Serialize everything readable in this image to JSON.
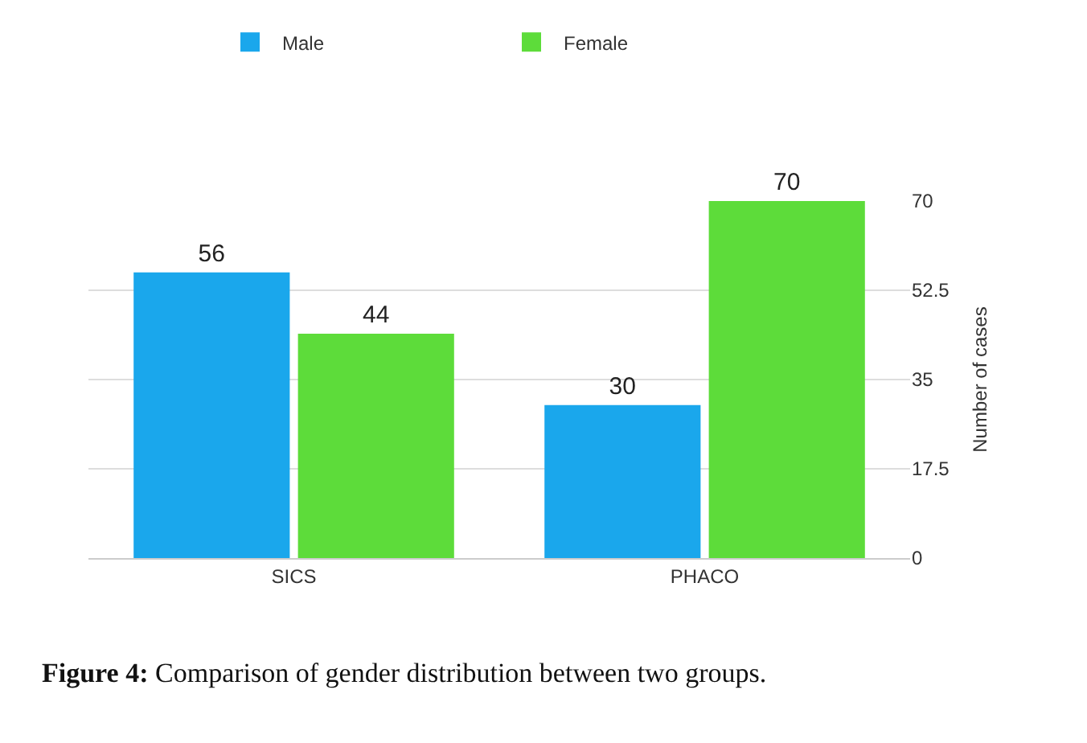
{
  "chart_data": {
    "type": "bar",
    "categories": [
      "SICS",
      "PHACO"
    ],
    "series": [
      {
        "name": "Male",
        "color": "#1aa7ec",
        "values": [
          56,
          30
        ]
      },
      {
        "name": "Female",
        "color": "#5ddc3a",
        "values": [
          44,
          70
        ]
      }
    ],
    "ylabel": "Number of cases",
    "ylim": [
      0,
      70
    ],
    "yticks": [
      0,
      17.5,
      35,
      52.5,
      70
    ],
    "grid": "y",
    "legend": "top",
    "data_labels": true,
    "annotations": [
      "Figure 4: Comparison of gender distribution between two groups."
    ]
  }
}
